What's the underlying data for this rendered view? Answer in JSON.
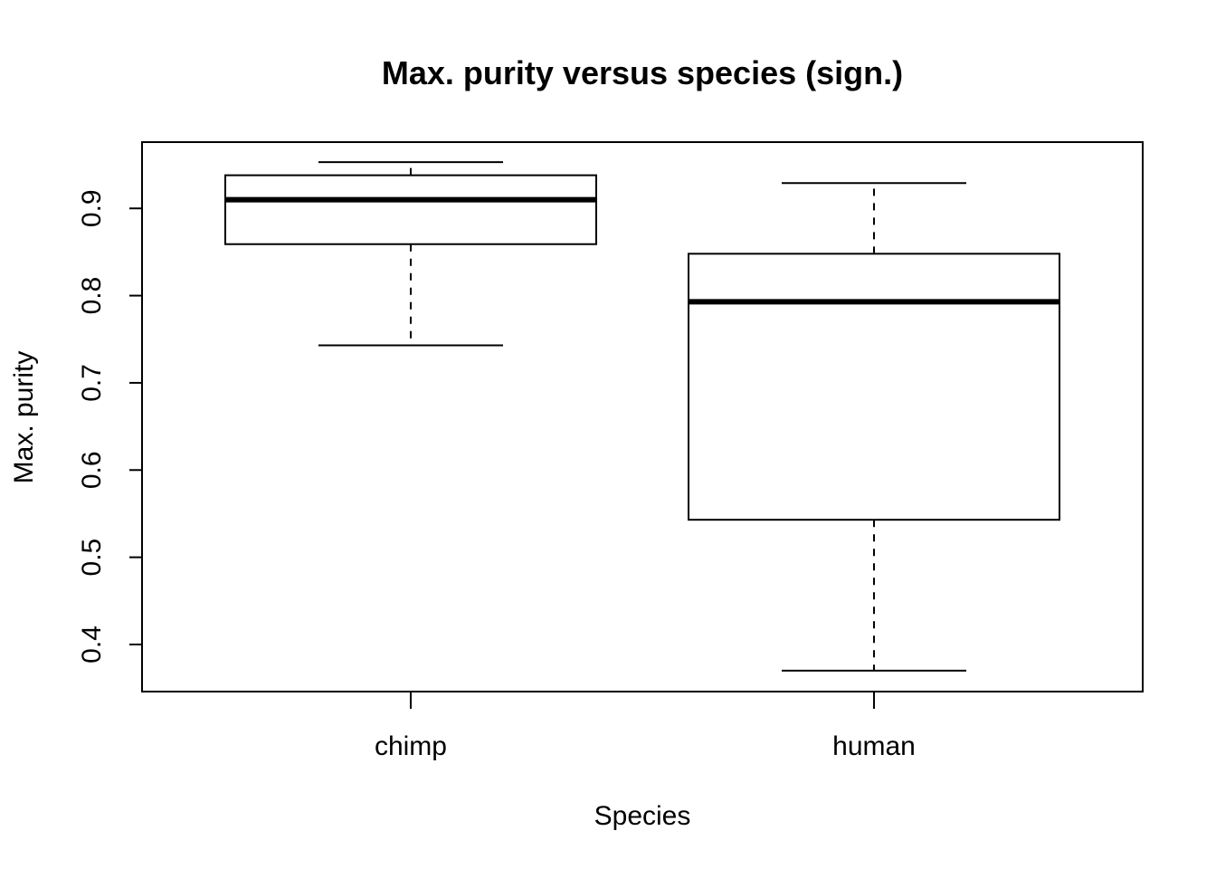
{
  "chart_data": {
    "type": "boxplot",
    "title": "Max. purity versus species (sign.)",
    "xlabel": "Species",
    "ylabel": "Max. purity",
    "categories": [
      "chimp",
      "human"
    ],
    "boxes": [
      {
        "category": "chimp",
        "whisker_low": 0.743,
        "q1": 0.859,
        "median": 0.91,
        "q3": 0.938,
        "whisker_high": 0.953
      },
      {
        "category": "human",
        "whisker_low": 0.37,
        "q1": 0.543,
        "median": 0.793,
        "q3": 0.848,
        "whisker_high": 0.929
      }
    ],
    "y_ticks": [
      0.4,
      0.5,
      0.6,
      0.7,
      0.8,
      0.9
    ],
    "y_tick_labels": [
      "0.4",
      "0.5",
      "0.6",
      "0.7",
      "0.8",
      "0.9"
    ],
    "ylim": [
      0.346,
      0.976
    ],
    "grid": false,
    "legend": "none"
  }
}
